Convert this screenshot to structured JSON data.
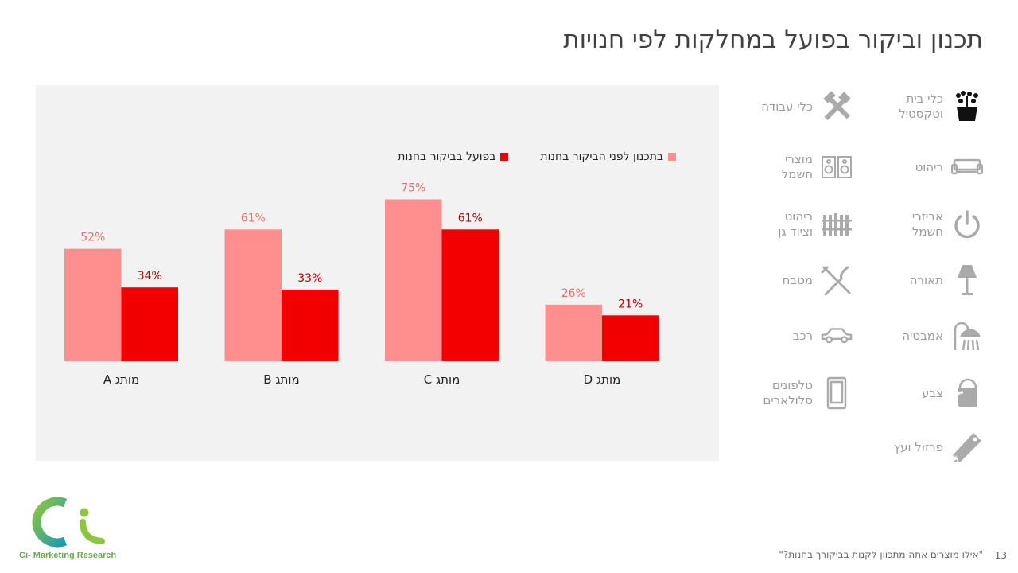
{
  "slide": {
    "title": "תכנון וביקור בפועל במחלקות לפי חנויות",
    "footnote": "\"אילו מוצרים אתה מתכוון לקנות בביקורך בחנות?\"",
    "page_number": "13",
    "logo_text": "Ci- Marketing Research"
  },
  "colors": {
    "planned": "#ff8f8f",
    "actual": "#f20000",
    "planned_label": "#e8706b",
    "actual_label": "#b00000"
  },
  "chart_data": {
    "type": "bar",
    "categories": [
      "מותג A",
      "מותג B",
      "מותג C",
      "מותג D"
    ],
    "series": [
      {
        "name": "בתכנון לפני הביקור בחנות",
        "values": [
          52,
          61,
          75,
          26
        ],
        "labels": [
          "52%",
          "61%",
          "75%",
          "26%"
        ]
      },
      {
        "name": "בפועל בביקור בחנות",
        "values": [
          34,
          33,
          61,
          21
        ],
        "labels": [
          "34%",
          "33%",
          "61%",
          "21%"
        ]
      }
    ],
    "ylim": [
      0,
      100
    ],
    "grid": false,
    "legend": "top"
  },
  "categories_panel": [
    {
      "label": "כלי בית\nוטקסטיל",
      "icon": "plant-pot-icon",
      "active": true
    },
    {
      "label": "כלי עבודה",
      "icon": "tools-icon",
      "active": false
    },
    {
      "label": "ריהוט",
      "icon": "sofa-icon",
      "active": false
    },
    {
      "label": "מוצרי\nחשמל",
      "icon": "speakers-icon",
      "active": false
    },
    {
      "label": "אביזרי\nחשמל",
      "icon": "power-icon",
      "active": false
    },
    {
      "label": "ריהוט\nוציוד גן",
      "icon": "fence-icon",
      "active": false
    },
    {
      "label": "תאורה",
      "icon": "lamp-icon",
      "active": false
    },
    {
      "label": "מטבח",
      "icon": "cutlery-icon",
      "active": false
    },
    {
      "label": "אמבטיה",
      "icon": "shower-icon",
      "active": false
    },
    {
      "label": "רכב",
      "icon": "car-icon",
      "active": false
    },
    {
      "label": "צבע",
      "icon": "paint-bucket-icon",
      "active": false
    },
    {
      "label": "טלפונים\nסלולארים",
      "icon": "phone-icon",
      "active": false
    },
    {
      "label": "פרזול ועץ",
      "icon": "saw-icon",
      "active": false
    }
  ]
}
